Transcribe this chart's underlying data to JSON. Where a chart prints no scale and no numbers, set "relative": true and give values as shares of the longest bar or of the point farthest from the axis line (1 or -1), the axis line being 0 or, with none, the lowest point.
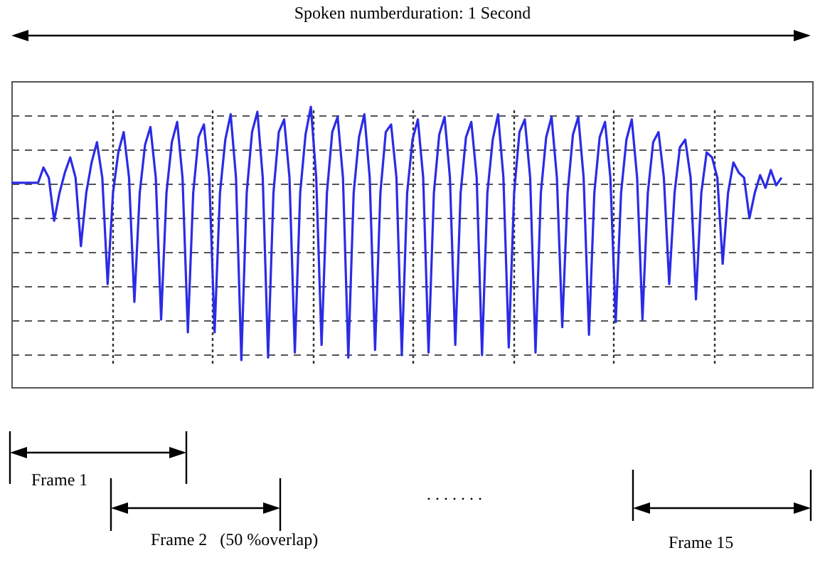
{
  "chart_data": {
    "type": "line",
    "relative": true,
    "title": "Spoken numberduration: 1 Second",
    "annotations": [
      "Frame 1",
      "Frame 2   (50 %overlap)",
      ". . . . . . .",
      "Frame 15"
    ],
    "grid": true,
    "categories": [
      null,
      null,
      null,
      null,
      null,
      null,
      null,
      null,
      null,
      null,
      null,
      null,
      null,
      null,
      null,
      null,
      null,
      null,
      null,
      null,
      null,
      null,
      null,
      null,
      null,
      null,
      null,
      null,
      null,
      null,
      null,
      null,
      null,
      null,
      null,
      null,
      null,
      null,
      null,
      null,
      null,
      null,
      null,
      null,
      null,
      null,
      null,
      null,
      null,
      null,
      null,
      null,
      null,
      null,
      null,
      null,
      null,
      null,
      null,
      null,
      null,
      null,
      null,
      null,
      null,
      null,
      null,
      null,
      null,
      null,
      null,
      null,
      null,
      null,
      null,
      null,
      null,
      null,
      null,
      null,
      null,
      null,
      null,
      null,
      null,
      null,
      null,
      null,
      null,
      null,
      null,
      null,
      null,
      null,
      null,
      null,
      null,
      null,
      null,
      null,
      null,
      null,
      null,
      null,
      null,
      null,
      null,
      null,
      null,
      null,
      null,
      null,
      null,
      null,
      null,
      null,
      null,
      null,
      null,
      null,
      null,
      null,
      null,
      null,
      null,
      null,
      null,
      null,
      null,
      null,
      null,
      null,
      null,
      null,
      null,
      null,
      null,
      null,
      null,
      null,
      null,
      null,
      null,
      null,
      null,
      null,
      null,
      null,
      null,
      null,
      null
    ],
    "series": [
      {
        "color": "#2b2be6",
        "values": [
          0.7,
          0.7,
          0.7,
          0.7,
          0.7,
          0.7,
          0.76,
          0.72,
          0.55,
          0.66,
          0.74,
          0.8,
          0.72,
          0.45,
          0.66,
          0.78,
          0.86,
          0.72,
          0.3,
          0.66,
          0.82,
          0.9,
          0.72,
          0.23,
          0.66,
          0.85,
          0.92,
          0.72,
          0.16,
          0.66,
          0.86,
          0.94,
          0.72,
          0.11,
          0.66,
          0.88,
          0.93,
          0.72,
          0.11,
          0.66,
          0.87,
          0.97,
          0.72,
          0,
          0.66,
          0.9,
          0.98,
          0.72,
          0.01,
          0.66,
          0.9,
          0.95,
          0.72,
          0.03,
          0.66,
          0.89,
          1,
          0.72,
          0.06,
          0.66,
          0.9,
          0.96,
          0.72,
          0.01,
          0.66,
          0.88,
          0.97,
          0.72,
          0.04,
          0.66,
          0.9,
          0.93,
          0.72,
          0.02,
          0.66,
          0.87,
          0.95,
          0.72,
          0.03,
          0.66,
          0.89,
          0.96,
          0.72,
          0.06,
          0.66,
          0.88,
          0.94,
          0.72,
          0.02,
          0.66,
          0.87,
          0.97,
          0.72,
          0.05,
          0.66,
          0.9,
          0.95,
          0.72,
          0.03,
          0.66,
          0.88,
          0.96,
          0.72,
          0.13,
          0.66,
          0.89,
          0.96,
          0.72,
          0.1,
          0.66,
          0.88,
          0.94,
          0.72,
          0.15,
          0.66,
          0.87,
          0.95,
          0.72,
          0.16,
          0.66,
          0.86,
          0.9,
          0.72,
          0.3,
          0.66,
          0.84,
          0.87,
          0.72,
          0.24,
          0.66,
          0.82,
          0.8,
          0.72,
          0.38,
          0.66,
          0.78,
          0.74,
          0.72,
          0.56,
          0.66,
          0.73,
          0.68,
          0.75,
          0.69,
          0.72,
          null,
          null,
          null,
          null,
          null,
          null
        ]
      }
    ]
  }
}
